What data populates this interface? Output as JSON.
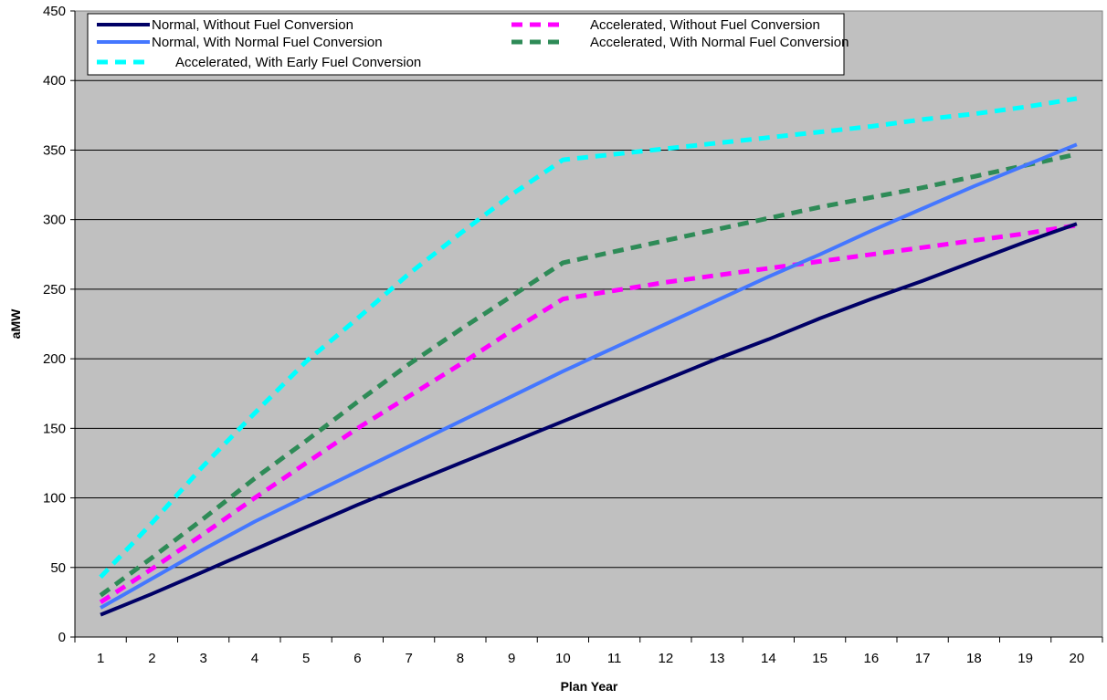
{
  "chart_data": {
    "type": "line",
    "title": "",
    "xlabel": "Plan Year",
    "ylabel": "aMW",
    "x": [
      1,
      2,
      3,
      4,
      5,
      6,
      7,
      8,
      9,
      10,
      11,
      12,
      13,
      14,
      15,
      16,
      17,
      18,
      19,
      20
    ],
    "ylim": [
      0,
      450
    ],
    "yticks": [
      0,
      50,
      100,
      150,
      200,
      250,
      300,
      350,
      400,
      450
    ],
    "grid": "horizontal",
    "legend_placement": "top-left",
    "background": "#c0c0c0",
    "series": [
      {
        "name": "Normal, Without Fuel Conversion",
        "color": "#000066",
        "style": "solid",
        "values": [
          16,
          31,
          47,
          63,
          79,
          95,
          110,
          125,
          140,
          155,
          170,
          185,
          200,
          214,
          229,
          243,
          256,
          270,
          284,
          297
        ]
      },
      {
        "name": "Accelerated, Without Fuel Conversion",
        "color": "#ff00ff",
        "style": "dashed",
        "values": [
          25,
          49,
          74,
          100,
          125,
          150,
          173,
          196,
          220,
          243,
          249,
          255,
          260,
          265,
          270,
          275,
          280,
          285,
          290,
          296
        ]
      },
      {
        "name": "Normal, With Normal Fuel Conversion",
        "color": "#4477ff",
        "style": "solid",
        "values": [
          21,
          42,
          63,
          83,
          101,
          119,
          137,
          155,
          173,
          191,
          208,
          225,
          242,
          259,
          275,
          292,
          308,
          324,
          339,
          354
        ]
      },
      {
        "name": "Accelerated, With Normal Fuel Conversion",
        "color": "#2e8b57",
        "style": "dashed",
        "values": [
          30,
          57,
          85,
          114,
          141,
          169,
          196,
          221,
          245,
          269,
          277,
          285,
          293,
          301,
          309,
          316,
          323,
          331,
          339,
          347
        ]
      },
      {
        "name": "Accelerated, With Early Fuel Conversion",
        "color": "#00ffff",
        "style": "dashed",
        "values": [
          43,
          82,
          123,
          161,
          198,
          229,
          261,
          290,
          318,
          343,
          347,
          351,
          355,
          359,
          363,
          367,
          372,
          376,
          381,
          387
        ]
      }
    ]
  }
}
